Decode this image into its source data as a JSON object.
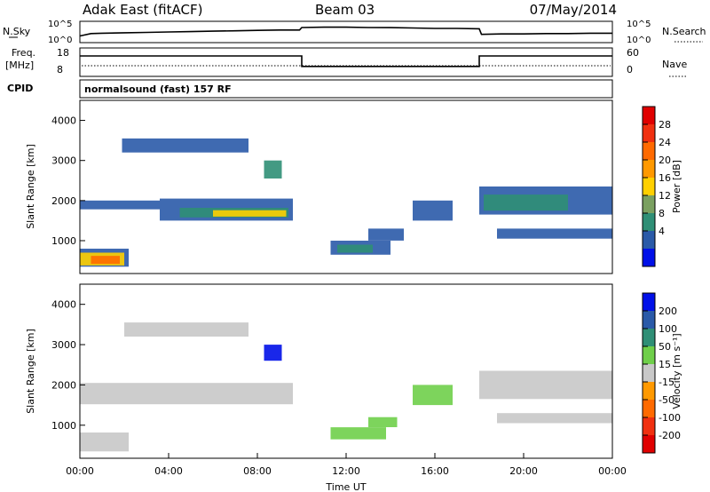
{
  "header": {
    "station": "Adak East (fitACF)",
    "beam": "Beam 03",
    "date": "07/May/2014"
  },
  "strips": {
    "nsky_label": "N.Sky",
    "nsearch_label": "N.Search",
    "count_ticks": [
      "10^5",
      "10^0"
    ],
    "freq_label_1": "Freq.",
    "freq_label_2": "[MHz]",
    "freq_ticks": [
      "18",
      "8"
    ],
    "nave_label": "Nave",
    "nave_ticks": [
      "60",
      "0"
    ],
    "cpid_label": "CPID",
    "cpid_value": "normalsound (fast) 157 RF"
  },
  "chart_data": [
    {
      "type": "line",
      "name": "noise",
      "x_unit": "hours UT",
      "x": [
        0.0,
        0.5,
        1.0,
        2.0,
        3.0,
        4.0,
        5.0,
        6.0,
        7.0,
        8.0,
        9.0,
        9.9,
        10.0,
        11.0,
        12.0,
        13.0,
        14.0,
        15.0,
        16.0,
        17.0,
        18.0,
        18.1,
        19.0,
        20.0,
        21.0,
        22.0,
        23.0,
        24.0
      ],
      "series": [
        {
          "name": "N.Sky",
          "values": [
            0.25,
            0.4,
            0.42,
            0.45,
            0.47,
            0.5,
            0.52,
            0.55,
            0.57,
            0.6,
            0.62,
            0.62,
            0.78,
            0.8,
            0.8,
            0.78,
            0.77,
            0.75,
            0.72,
            0.72,
            0.7,
            0.35,
            0.38,
            0.38,
            0.4,
            0.4,
            0.42,
            0.42
          ]
        }
      ],
      "ylim": [
        0,
        1
      ]
    },
    {
      "type": "line",
      "name": "frequency",
      "x_unit": "hours UT",
      "x": [
        0.0,
        10.0,
        10.0,
        18.0,
        18.0,
        24.0
      ],
      "series": [
        {
          "name": "Freq.",
          "values": [
            15.5,
            15.5,
            11.3,
            11.3,
            15.5,
            15.5
          ]
        }
      ],
      "ylim": [
        8,
        18
      ]
    },
    {
      "type": "heatmap",
      "title": "",
      "xlabel": "",
      "ylabel": "Slant Range [km]",
      "xlim": [
        0,
        24
      ],
      "ylim": [
        180,
        4500
      ],
      "y_ticks": [
        "1000",
        "2000",
        "3000",
        "4000"
      ],
      "colorbar_label": "Power [dB]",
      "colorbar_ticks": [
        "28",
        "24",
        "20",
        "16",
        "12",
        "8",
        "4"
      ],
      "colorbar_colors": [
        "#e00000",
        "#f03010",
        "#ff6a00",
        "#ff9900",
        "#ffd000",
        "#7aa060",
        "#2f8f76",
        "#2a5aa8",
        "#0010e8"
      ],
      "bands": [
        {
          "t0": 0.0,
          "t1": 3.6,
          "r0": 1780,
          "r1": 2000,
          "color": "#2a5aa8"
        },
        {
          "t0": 3.6,
          "t1": 9.6,
          "r0": 1500,
          "r1": 2050,
          "color": "#2a5aa8"
        },
        {
          "t0": 4.5,
          "t1": 9.4,
          "r0": 1580,
          "r1": 1820,
          "color": "#2f8f76"
        },
        {
          "t0": 6.0,
          "t1": 9.3,
          "r0": 1600,
          "r1": 1760,
          "color": "#ffd000"
        },
        {
          "t0": 0.0,
          "t1": 2.2,
          "r0": 350,
          "r1": 800,
          "color": "#2a5aa8"
        },
        {
          "t0": 0.0,
          "t1": 2.0,
          "r0": 380,
          "r1": 700,
          "color": "#ffd000"
        },
        {
          "t0": 0.5,
          "t1": 1.8,
          "r0": 420,
          "r1": 620,
          "color": "#ff6a00"
        },
        {
          "t0": 1.9,
          "t1": 7.6,
          "r0": 3200,
          "r1": 3550,
          "color": "#2a5aa8"
        },
        {
          "t0": 8.3,
          "t1": 9.1,
          "r0": 2550,
          "r1": 3000,
          "color": "#2f8f76"
        },
        {
          "t0": 11.3,
          "t1": 14.0,
          "r0": 650,
          "r1": 1000,
          "color": "#2a5aa8"
        },
        {
          "t0": 11.6,
          "t1": 13.2,
          "r0": 700,
          "r1": 900,
          "color": "#2f8f76"
        },
        {
          "t0": 13.0,
          "t1": 14.6,
          "r0": 1000,
          "r1": 1300,
          "color": "#2a5aa8"
        },
        {
          "t0": 18.0,
          "t1": 24.0,
          "r0": 1650,
          "r1": 2350,
          "color": "#2a5aa8"
        },
        {
          "t0": 18.2,
          "t1": 22.0,
          "r0": 1750,
          "r1": 2150,
          "color": "#2f8f76"
        },
        {
          "t0": 18.8,
          "t1": 24.0,
          "r0": 1050,
          "r1": 1300,
          "color": "#2a5aa8"
        },
        {
          "t0": 15.0,
          "t1": 16.8,
          "r0": 1500,
          "r1": 2000,
          "color": "#2a5aa8"
        }
      ]
    },
    {
      "type": "heatmap",
      "title": "",
      "xlabel": "Time UT",
      "ylabel": "Slant Range [km]",
      "xlim": [
        0,
        24
      ],
      "ylim": [
        180,
        4500
      ],
      "x_ticks": [
        "00:00",
        "04:00",
        "08:00",
        "12:00",
        "16:00",
        "20:00",
        "00:00"
      ],
      "y_ticks": [
        "1000",
        "2000",
        "3000",
        "4000"
      ],
      "colorbar_label": "Velocity [m s⁻¹]",
      "colorbar_ticks": [
        "200",
        "100",
        "50",
        "15",
        "-15",
        "-50",
        "-100",
        "-200"
      ],
      "colorbar_colors": [
        "#0010e8",
        "#2a5aa8",
        "#2f8f76",
        "#6fcf4a",
        "#c8c8c8",
        "#ff9900",
        "#ff6a00",
        "#f03010",
        "#e00000"
      ],
      "bands": [
        {
          "t0": 0.0,
          "t1": 9.6,
          "r0": 1520,
          "r1": 2050,
          "color": "#c8c8c8"
        },
        {
          "t0": 0.0,
          "t1": 2.2,
          "r0": 350,
          "r1": 820,
          "color": "#c8c8c8"
        },
        {
          "t0": 2.0,
          "t1": 7.6,
          "r0": 3200,
          "r1": 3550,
          "color": "#c8c8c8"
        },
        {
          "t0": 8.3,
          "t1": 9.1,
          "r0": 2600,
          "r1": 3000,
          "color": "#0010e8"
        },
        {
          "t0": 11.3,
          "t1": 13.8,
          "r0": 650,
          "r1": 950,
          "color": "#6fcf4a"
        },
        {
          "t0": 13.0,
          "t1": 14.3,
          "r0": 950,
          "r1": 1200,
          "color": "#6fcf4a"
        },
        {
          "t0": 18.0,
          "t1": 24.0,
          "r0": 1650,
          "r1": 2350,
          "color": "#c8c8c8"
        },
        {
          "t0": 18.8,
          "t1": 24.0,
          "r0": 1050,
          "r1": 1300,
          "color": "#c8c8c8"
        },
        {
          "t0": 15.0,
          "t1": 16.8,
          "r0": 1500,
          "r1": 2000,
          "color": "#6fcf4a"
        }
      ]
    }
  ]
}
